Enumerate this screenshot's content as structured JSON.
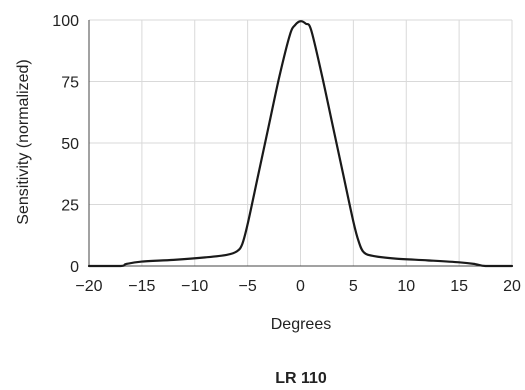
{
  "chart_data": {
    "type": "line",
    "title": "LR 110",
    "xlabel": "Degrees",
    "ylabel": "Sensitivity (normalized)",
    "xlim": [
      -20,
      20
    ],
    "ylim": [
      0,
      100
    ],
    "x_ticks": [
      -20,
      -15,
      -10,
      -5,
      0,
      5,
      10,
      15,
      20
    ],
    "x_tick_labels": [
      "−20",
      "−15",
      "−10",
      "−5",
      "0",
      "5",
      "10",
      "15",
      "20"
    ],
    "y_ticks": [
      0,
      25,
      50,
      75,
      100
    ],
    "y_tick_labels": [
      "0",
      "25",
      "50",
      "75",
      "100"
    ],
    "grid": true,
    "series": [
      {
        "color": "#1a1a1a",
        "x": [
          -20,
          -17,
          -16.5,
          -15,
          -12,
          -9,
          -7,
          -6,
          -5.5,
          -5,
          -4,
          -3,
          -2,
          -1,
          -0.5,
          0,
          0.5,
          1,
          2,
          3,
          4,
          5,
          5.5,
          6,
          7,
          9,
          12,
          15,
          16.5,
          17.5,
          20
        ],
        "y": [
          0,
          0,
          0.8,
          1.8,
          2.5,
          3.5,
          4.5,
          6,
          9,
          17,
          37,
          57,
          77,
          94,
          98,
          99.5,
          98.5,
          96,
          78,
          58,
          38,
          18,
          10,
          5.5,
          4,
          3,
          2.3,
          1.5,
          0.8,
          0,
          0
        ]
      }
    ]
  }
}
